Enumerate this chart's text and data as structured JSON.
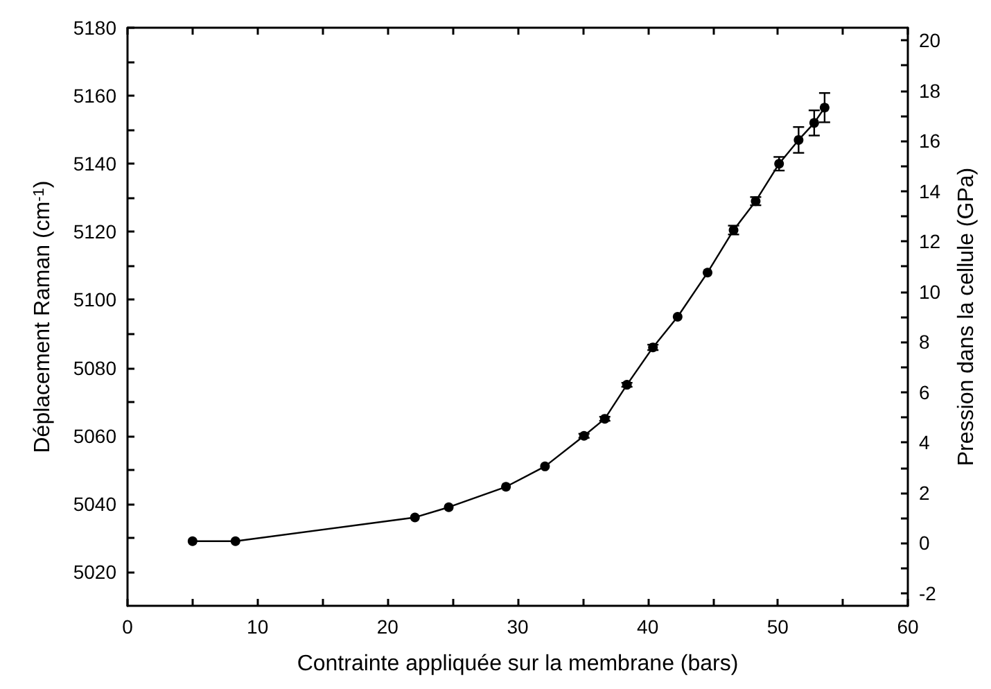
{
  "chart_data": {
    "type": "line",
    "xlabel": "Contrainte appliquée sur la membrane (bars)",
    "ylabel": "Déplacement Raman (cm$^{-1}$)",
    "y2label": "Pression dans la cellule (GPa)",
    "x": [
      5.0,
      8.3,
      22.1,
      24.7,
      29.1,
      32.1,
      35.1,
      36.7,
      38.4,
      40.4,
      42.3,
      44.6,
      46.6,
      48.3,
      50.1,
      51.6,
      52.8,
      53.6
    ],
    "series": [
      {
        "color": "#000000",
        "values": [
          5029,
          5029,
          5036,
          5039,
          5045,
          5051,
          5060,
          5065,
          5075,
          5086,
          5095,
          5108,
          5120.5,
          5129,
          5140,
          5147,
          5152,
          5156.5
        ],
        "errors": [
          null,
          null,
          null,
          null,
          null,
          null,
          0.6,
          0.6,
          0.6,
          0.8,
          null,
          null,
          1.3,
          1.2,
          2,
          3.8,
          3.7,
          4.3
        ]
      }
    ],
    "xlim": [
      0,
      60
    ],
    "xticks": [
      0,
      10,
      20,
      30,
      40,
      50,
      60
    ],
    "ylim": [
      5010,
      5180
    ],
    "yticks": [
      5020,
      5040,
      5060,
      5080,
      5100,
      5120,
      5140,
      5160,
      5180
    ],
    "y2lim": [
      -2.5,
      20.5
    ],
    "y2ticks": [
      -2,
      0,
      2,
      4,
      6,
      8,
      10,
      12,
      14,
      16,
      18,
      20
    ],
    "grid": false,
    "marker": "circle",
    "line_style": "solid"
  }
}
